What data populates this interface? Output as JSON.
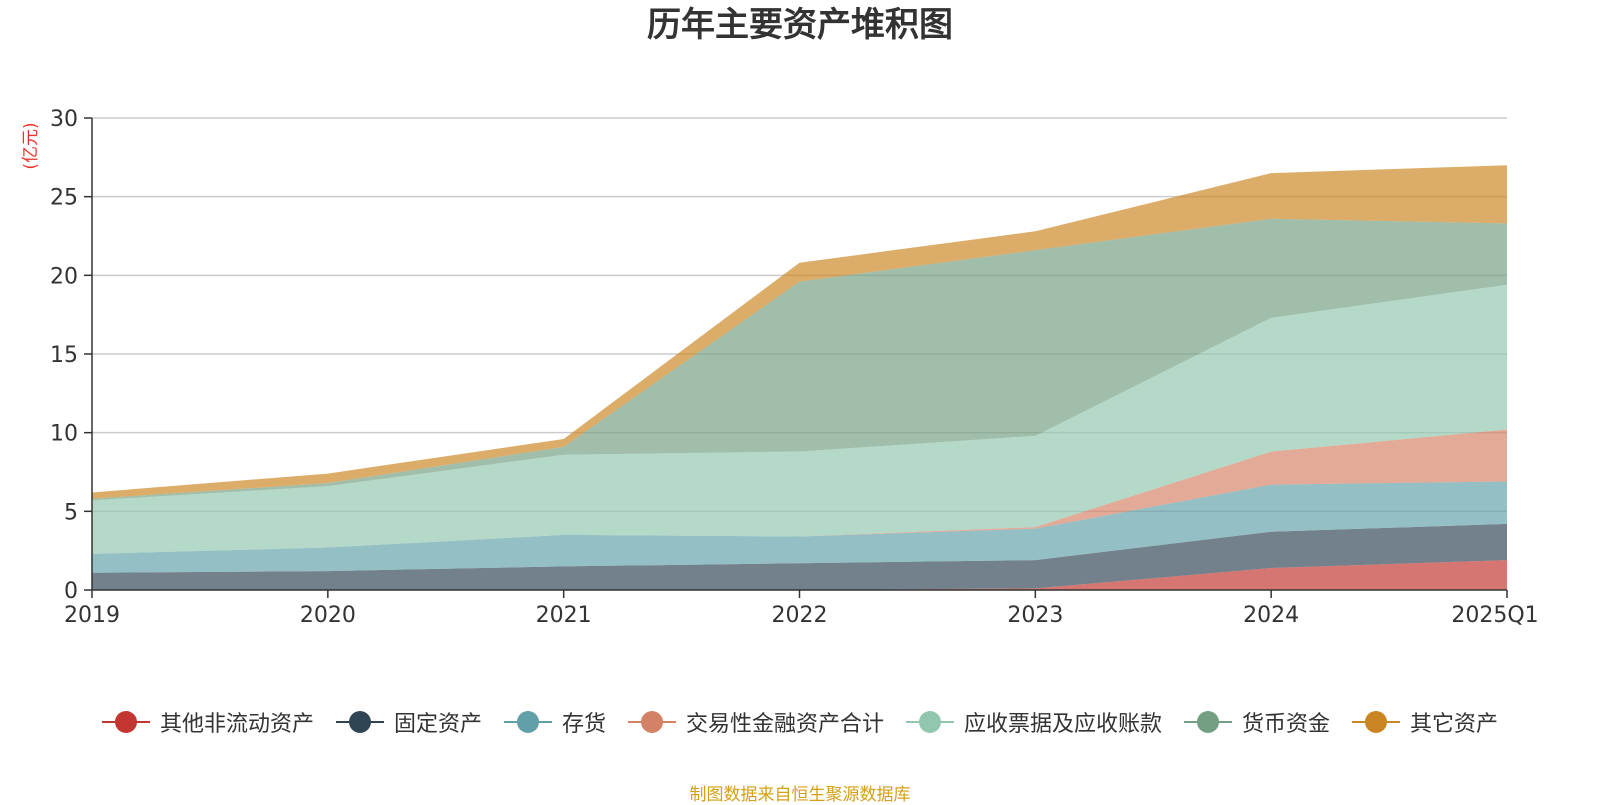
{
  "chart_data": {
    "type": "area",
    "title": "历年主要资产堆积图",
    "ylabel": "(亿元)",
    "categories": [
      "2019",
      "2020",
      "2021",
      "2022",
      "2023",
      "2024",
      "2025Q1"
    ],
    "ylim": [
      0,
      30
    ],
    "yticks": [
      0,
      5,
      10,
      15,
      20,
      25,
      30
    ],
    "grid": true,
    "legend_position": "bottom",
    "stacked": true,
    "series": [
      {
        "name": "其他非流动资产",
        "color": "#c23531",
        "values": [
          0,
          0,
          0,
          0,
          0.1,
          1.4,
          1.9
        ]
      },
      {
        "name": "固定资产",
        "color": "#2f4554",
        "values": [
          1.1,
          1.2,
          1.5,
          1.7,
          1.8,
          2.3,
          2.3
        ]
      },
      {
        "name": "存货",
        "color": "#61a0a8",
        "values": [
          1.2,
          1.5,
          2.0,
          1.7,
          2.0,
          3.0,
          2.7
        ]
      },
      {
        "name": "交易性金融资产合计",
        "color": "#d48265",
        "values": [
          0,
          0,
          0,
          0,
          0.1,
          2.1,
          3.3
        ]
      },
      {
        "name": "应收票据及应收账款",
        "color": "#91c7ae",
        "values": [
          3.4,
          3.9,
          5.1,
          5.4,
          5.8,
          8.5,
          9.2
        ]
      },
      {
        "name": "货币资金",
        "color": "#749f83",
        "values": [
          0.1,
          0.2,
          0.5,
          10.8,
          11.8,
          6.3,
          3.9
        ]
      },
      {
        "name": "其它资产",
        "color": "#ca8622",
        "values": [
          0.4,
          0.6,
          0.5,
          1.2,
          1.2,
          2.9,
          3.7
        ]
      }
    ]
  },
  "footer": {
    "source": "制图数据来自恒生聚源数据库"
  }
}
